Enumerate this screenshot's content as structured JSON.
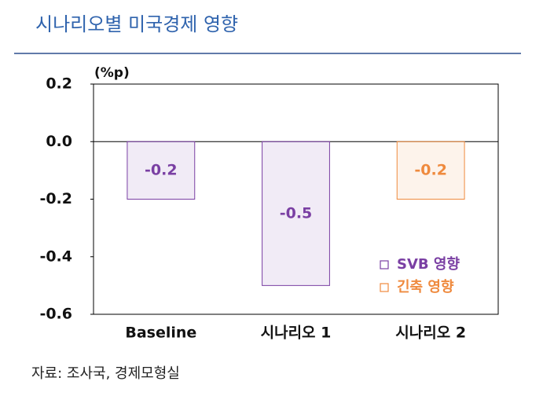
{
  "chart_data": {
    "type": "bar",
    "title": "시나리오별 미국경제 영향",
    "y_label": "(%p)",
    "categories": [
      "Baseline",
      "시나리오 1",
      "시나리오 2"
    ],
    "series": [
      {
        "name": "SVB 영향",
        "color": "#7a3fa3",
        "values": [
          -0.2,
          -0.5,
          null
        ]
      },
      {
        "name": "긴축 영향",
        "color": "#ef8a3e",
        "values": [
          null,
          null,
          -0.2
        ]
      }
    ],
    "ylim": [
      -0.6,
      0.2
    ],
    "yticks": [
      0.2,
      {
        "value": 0,
        "label": "0.0"
      },
      -0.2,
      -0.4,
      -0.6
    ],
    "source": "자료: 조사국, 경제모형실"
  }
}
